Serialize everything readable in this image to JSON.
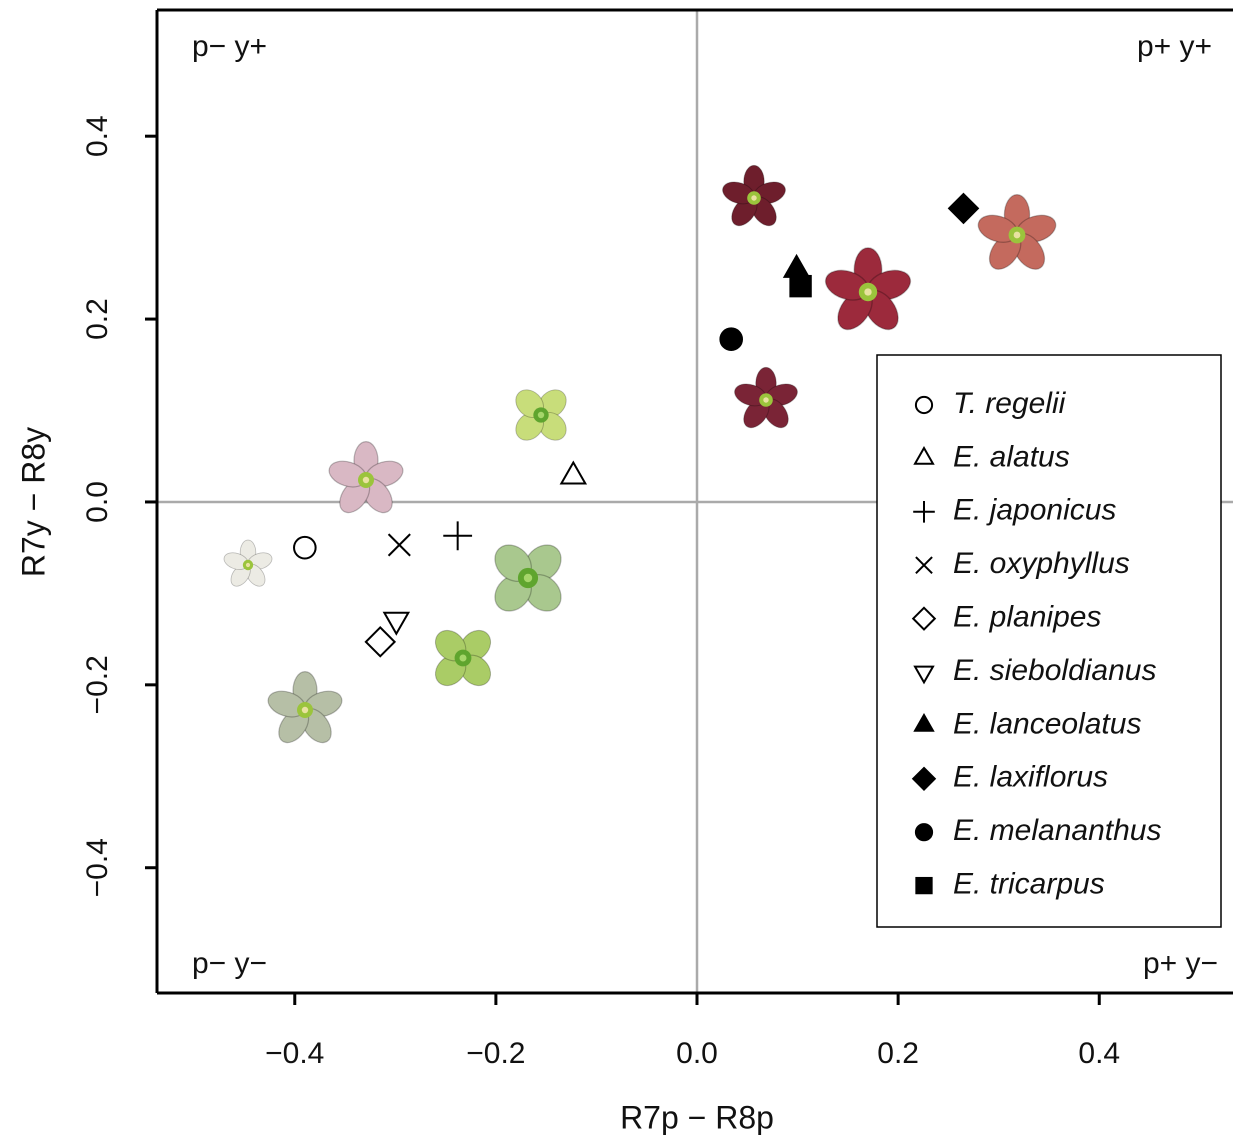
{
  "chart_data": {
    "type": "scatter",
    "x_label": "R7p − R8p",
    "y_label": "R7y − R8y",
    "xlim": [
      -0.537,
      0.533
    ],
    "ylim": [
      -0.537,
      0.538
    ],
    "xticks": [
      {
        "value": -0.4,
        "label": "−0.4"
      },
      {
        "value": -0.2,
        "label": "−0.2"
      },
      {
        "value": 0.0,
        "label": "0.0"
      },
      0.2,
      0.4
    ],
    "yticks": [
      {
        "value": -0.4,
        "label": "−0.4"
      },
      {
        "value": -0.2,
        "label": "−0.2"
      },
      {
        "value": 0.0,
        "label": "0.0"
      },
      0.2,
      0.4
    ],
    "annotations": [
      "p− y+",
      "p+ y+",
      "p− y−",
      "p+ y−"
    ],
    "series": [
      {
        "name": "T. regelii",
        "marker": "circle",
        "filled": false,
        "color": "#000000",
        "x": [
          -0.39
        ],
        "y": [
          -0.05
        ]
      },
      {
        "name": "E. alatus",
        "marker": "triangle",
        "filled": false,
        "color": "#000000",
        "x": [
          -0.123
        ],
        "y": [
          0.028
        ]
      },
      {
        "name": "E. japonicus",
        "marker": "plus",
        "filled": false,
        "color": "#000000",
        "x": [
          -0.238
        ],
        "y": [
          -0.037
        ]
      },
      {
        "name": "E. oxyphyllus",
        "marker": "cross",
        "filled": false,
        "color": "#000000",
        "x": [
          -0.296
        ],
        "y": [
          -0.047
        ]
      },
      {
        "name": "E. planipes",
        "marker": "diamond",
        "filled": false,
        "color": "#000000",
        "x": [
          -0.315
        ],
        "y": [
          -0.153
        ]
      },
      {
        "name": "E. sieboldianus",
        "marker": "down-triangle",
        "filled": false,
        "color": "#000000",
        "x": [
          -0.299
        ],
        "y": [
          -0.129
        ]
      },
      {
        "name": "E. lanceolatus",
        "marker": "triangle",
        "filled": true,
        "color": "#000000",
        "x": [
          0.099
        ],
        "y": [
          0.254
        ]
      },
      {
        "name": "E. laxiflorus",
        "marker": "diamond",
        "filled": true,
        "color": "#000000",
        "x": [
          0.265
        ],
        "y": [
          0.321
        ]
      },
      {
        "name": "E. melananthus",
        "marker": "circle",
        "filled": true,
        "color": "#000000",
        "x": [
          0.034
        ],
        "y": [
          0.178
        ]
      },
      {
        "name": "E. tricarpus",
        "marker": "square",
        "filled": true,
        "color": "#000000",
        "x": [
          0.103
        ],
        "y": [
          0.236
        ]
      }
    ]
  }
}
